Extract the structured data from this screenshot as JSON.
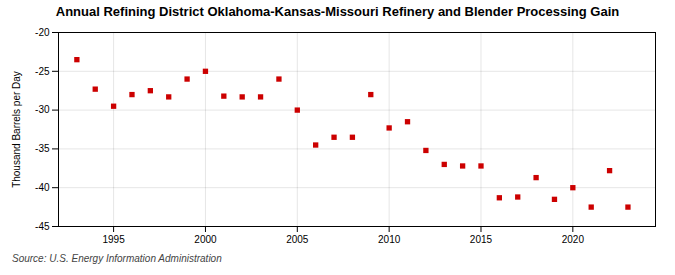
{
  "chart_data": {
    "type": "scatter",
    "title": "Annual Refining District Oklahoma-Kansas-Missouri Refinery and Blender Processing Gain",
    "ylabel": "Thousand Barrels per Day",
    "source": "Source: U.S. Energy Information Administration",
    "x": [
      1993,
      1994,
      1995,
      1996,
      1997,
      1998,
      1999,
      2000,
      2001,
      2002,
      2003,
      2004,
      2005,
      2006,
      2007,
      2008,
      2009,
      2010,
      2011,
      2012,
      2013,
      2014,
      2015,
      2016,
      2017,
      2018,
      2019,
      2020,
      2021,
      2022,
      2023
    ],
    "values": [
      -23.5,
      -27.3,
      -29.5,
      -28.0,
      -27.5,
      -28.3,
      -26.0,
      -25.0,
      -28.2,
      -28.3,
      -28.3,
      -26.0,
      -30.0,
      -34.5,
      -33.5,
      -33.5,
      -28.0,
      -32.3,
      -31.5,
      -35.2,
      -37.0,
      -37.2,
      -37.2,
      -41.3,
      -41.2,
      -38.7,
      -41.5,
      -40.0,
      -42.5,
      -37.8,
      -42.5
    ],
    "color": "#cc0000",
    "marker": "square",
    "xlim": [
      1992.0,
      2024.5
    ],
    "xticks": [
      1995,
      2000,
      2005,
      2010,
      2015,
      2020
    ],
    "ylim": [
      -45,
      -20
    ],
    "yticks": [
      -20,
      -25,
      -30,
      -35,
      -40,
      -45
    ],
    "grid": true
  }
}
